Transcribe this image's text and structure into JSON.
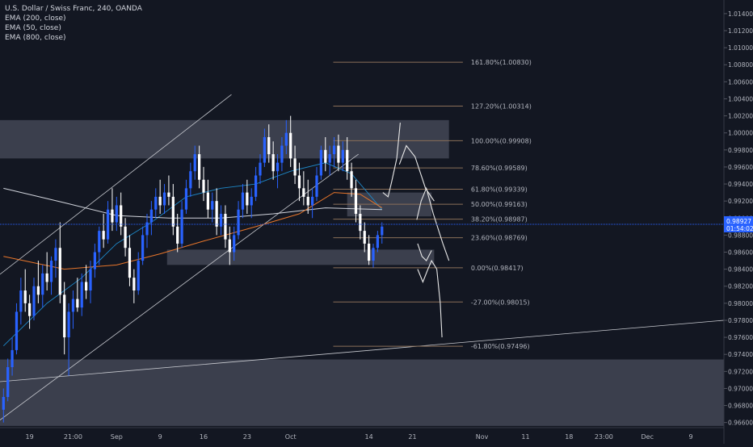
{
  "colors": {
    "background": "#131722",
    "candle_up": "#2962ff",
    "candle_down": "#ffffff",
    "ema200": "#d1d4dc",
    "ema50": "#e8762b",
    "ema800": "#1e88c8",
    "zone": "#4a4e5c",
    "fib_line": "#8a6f58",
    "fib_text": "#b2b5be",
    "price_line": "#2962ff",
    "axis_text": "#b2b5be",
    "price_badge": "#2962ff"
  },
  "chart_data": {
    "type": "candlestick",
    "symbol_line": "U.S. Dollar / Swiss Franc, 240, OANDA",
    "indicators": [
      "EMA (200, close)",
      "EMA (50, close)",
      "EMA (800, close)"
    ],
    "y_ticks": [
      "1.01400",
      "1.01200",
      "1.01000",
      "1.00800",
      "1.00600",
      "1.00400",
      "1.00200",
      "1.00000",
      "0.99800",
      "0.99600",
      "0.99400",
      "0.99200",
      "0.99000",
      "0.98800",
      "0.98600",
      "0.98400",
      "0.98200",
      "0.98000",
      "0.97800",
      "0.97600",
      "0.97400",
      "0.97200",
      "0.97000",
      "0.96800",
      "0.96600"
    ],
    "y_tick_values": [
      1.014,
      1.012,
      1.01,
      1.008,
      1.006,
      1.004,
      1.002,
      1.0,
      0.998,
      0.996,
      0.994,
      0.992,
      0.99,
      0.988,
      0.986,
      0.984,
      0.982,
      0.98,
      0.978,
      0.976,
      0.974,
      0.972,
      0.97,
      0.968,
      0.966
    ],
    "ylim": [
      0.9654,
      1.0156
    ],
    "x_ticks": [
      {
        "label": "19",
        "x": 0
      },
      {
        "label": "21:00",
        "x": 5
      },
      {
        "label": "Sep",
        "x": 10
      },
      {
        "label": "9",
        "x": 15
      },
      {
        "label": "16",
        "x": 20
      },
      {
        "label": "23",
        "x": 25
      },
      {
        "label": "Oct",
        "x": 30
      },
      {
        "label": "14",
        "x": 39
      },
      {
        "label": "21",
        "x": 44
      },
      {
        "label": "Nov",
        "x": 52
      },
      {
        "label": "11",
        "x": 57
      },
      {
        "label": "18",
        "x": 62
      },
      {
        "label": "23:00",
        "x": 66
      },
      {
        "label": "Dec",
        "x": 71
      },
      {
        "label": "9",
        "x": 76
      }
    ],
    "xlim": [
      -3.4,
      79.8
    ],
    "current_price": {
      "label": "0.98927",
      "countdown": "01:54:02",
      "value": 0.98927
    },
    "candles": [
      [
        -3,
        0.9675,
        0.97,
        0.966,
        0.969
      ],
      [
        -2.5,
        0.969,
        0.9735,
        0.9685,
        0.9725
      ],
      [
        -2,
        0.9725,
        0.976,
        0.9715,
        0.9745
      ],
      [
        -1.5,
        0.9745,
        0.98,
        0.974,
        0.979
      ],
      [
        -1,
        0.979,
        0.983,
        0.9775,
        0.9815
      ],
      [
        -0.5,
        0.9815,
        0.984,
        0.979,
        0.98
      ],
      [
        0,
        0.98,
        0.981,
        0.977,
        0.9785
      ],
      [
        0.5,
        0.9785,
        0.983,
        0.978,
        0.982
      ],
      [
        1,
        0.982,
        0.985,
        0.98,
        0.981
      ],
      [
        1.5,
        0.981,
        0.9845,
        0.9795,
        0.9835
      ],
      [
        2,
        0.9835,
        0.986,
        0.9815,
        0.9825
      ],
      [
        2.5,
        0.9825,
        0.9855,
        0.981,
        0.985
      ],
      [
        3,
        0.985,
        0.9875,
        0.983,
        0.9865
      ],
      [
        3.5,
        0.9865,
        0.9895,
        0.98,
        0.981
      ],
      [
        4,
        0.981,
        0.9825,
        0.974,
        0.976
      ],
      [
        4.5,
        0.976,
        0.98,
        0.9715,
        0.979
      ],
      [
        5,
        0.979,
        0.9815,
        0.977,
        0.9805
      ],
      [
        5.5,
        0.9805,
        0.983,
        0.979,
        0.9795
      ],
      [
        6,
        0.9795,
        0.9835,
        0.9785,
        0.9825
      ],
      [
        6.5,
        0.9825,
        0.9845,
        0.9805,
        0.9815
      ],
      [
        7,
        0.9815,
        0.985,
        0.98,
        0.984
      ],
      [
        7.5,
        0.984,
        0.987,
        0.983,
        0.986
      ],
      [
        8,
        0.986,
        0.989,
        0.9845,
        0.9885
      ],
      [
        8.5,
        0.9885,
        0.9905,
        0.9865,
        0.9875
      ],
      [
        9,
        0.9875,
        0.992,
        0.987,
        0.991
      ],
      [
        9.5,
        0.991,
        0.9935,
        0.9885,
        0.9895
      ],
      [
        10,
        0.9895,
        0.9925,
        0.9885,
        0.9915
      ],
      [
        10.5,
        0.9915,
        0.993,
        0.988,
        0.989
      ],
      [
        11,
        0.989,
        0.99,
        0.9855,
        0.9865
      ],
      [
        11.5,
        0.9865,
        0.988,
        0.982,
        0.983
      ],
      [
        12,
        0.983,
        0.984,
        0.98,
        0.9815
      ],
      [
        12.5,
        0.9815,
        0.986,
        0.981,
        0.985
      ],
      [
        13,
        0.985,
        0.989,
        0.9845,
        0.988
      ],
      [
        13.5,
        0.988,
        0.9905,
        0.9865,
        0.9895
      ],
      [
        14,
        0.9895,
        0.992,
        0.988,
        0.991
      ],
      [
        14.5,
        0.991,
        0.9935,
        0.99,
        0.9925
      ],
      [
        15,
        0.9925,
        0.9945,
        0.9905,
        0.9915
      ],
      [
        15.5,
        0.9915,
        0.994,
        0.9905,
        0.993
      ],
      [
        16,
        0.993,
        0.995,
        0.9915,
        0.9925
      ],
      [
        16.5,
        0.9925,
        0.994,
        0.988,
        0.989
      ],
      [
        17,
        0.989,
        0.9905,
        0.986,
        0.987
      ],
      [
        17.5,
        0.987,
        0.992,
        0.9865,
        0.991
      ],
      [
        18,
        0.991,
        0.9945,
        0.9905,
        0.9935
      ],
      [
        18.5,
        0.9935,
        0.9965,
        0.9925,
        0.9955
      ],
      [
        19,
        0.9955,
        0.9985,
        0.9945,
        0.9975
      ],
      [
        19.5,
        0.9975,
        0.9985,
        0.9935,
        0.9945
      ],
      [
        20,
        0.9945,
        0.996,
        0.992,
        0.993
      ],
      [
        20.5,
        0.993,
        0.9945,
        0.99,
        0.991
      ],
      [
        21,
        0.991,
        0.993,
        0.9895,
        0.992
      ],
      [
        21.5,
        0.992,
        0.9935,
        0.988,
        0.989
      ],
      [
        22,
        0.989,
        0.9915,
        0.988,
        0.9905
      ],
      [
        22.5,
        0.9905,
        0.9915,
        0.9865,
        0.9875
      ],
      [
        23,
        0.9875,
        0.989,
        0.9845,
        0.986
      ],
      [
        23.5,
        0.986,
        0.989,
        0.985,
        0.988
      ],
      [
        24,
        0.988,
        0.992,
        0.9875,
        0.991
      ],
      [
        24.5,
        0.991,
        0.994,
        0.99,
        0.993
      ],
      [
        25,
        0.993,
        0.9945,
        0.9905,
        0.9915
      ],
      [
        25.5,
        0.9915,
        0.9935,
        0.99,
        0.9925
      ],
      [
        26,
        0.9925,
        0.996,
        0.992,
        0.995
      ],
      [
        26.5,
        0.995,
        0.9975,
        0.994,
        0.9965
      ],
      [
        27,
        0.9965,
        1.0005,
        0.996,
        0.9995
      ],
      [
        27.5,
        0.9995,
        1.001,
        0.9965,
        0.9975
      ],
      [
        28,
        0.9975,
        0.999,
        0.9945,
        0.9955
      ],
      [
        28.5,
        0.9955,
        0.9975,
        0.9935,
        0.9965
      ],
      [
        29,
        0.9965,
        0.9995,
        0.9955,
        0.9985
      ],
      [
        29.5,
        0.9985,
        1.0015,
        0.9975,
        1.0
      ],
      [
        30,
        1.0,
        1.002,
        0.996,
        0.997
      ],
      [
        30.5,
        0.997,
        0.9985,
        0.994,
        0.995
      ],
      [
        31,
        0.995,
        0.9965,
        0.992,
        0.9935
      ],
      [
        31.5,
        0.9935,
        0.9955,
        0.9915,
        0.9925
      ],
      [
        32,
        0.9925,
        0.9945,
        0.9905,
        0.9915
      ],
      [
        32.5,
        0.9915,
        0.9935,
        0.99,
        0.9925
      ],
      [
        33,
        0.9925,
        0.996,
        0.992,
        0.995
      ],
      [
        33.5,
        0.995,
        0.9985,
        0.9945,
        0.998
      ],
      [
        34,
        0.998,
        0.9995,
        0.9955,
        0.9965
      ],
      [
        34.5,
        0.9965,
        0.9985,
        0.995,
        0.9975
      ],
      [
        35,
        0.9975,
        0.9995,
        0.996,
        0.9985
      ],
      [
        35.5,
        0.9985,
        0.9998,
        0.9955,
        0.9965
      ],
      [
        36,
        0.9965,
        0.999,
        0.9955,
        0.998
      ],
      [
        36.5,
        0.998,
        0.9995,
        0.9945,
        0.9955
      ],
      [
        37,
        0.9955,
        0.9965,
        0.9925,
        0.9935
      ],
      [
        37.5,
        0.9935,
        0.9945,
        0.9895,
        0.9905
      ],
      [
        38,
        0.9905,
        0.9915,
        0.9875,
        0.9885
      ],
      [
        38.5,
        0.9885,
        0.9895,
        0.986,
        0.987
      ],
      [
        39,
        0.987,
        0.988,
        0.9845,
        0.985
      ],
      [
        39.5,
        0.985,
        0.987,
        0.9842,
        0.9865
      ],
      [
        40,
        0.9865,
        0.9885,
        0.986,
        0.988
      ],
      [
        40.5,
        0.988,
        0.9895,
        0.987,
        0.989
      ]
    ],
    "ema200": [
      [
        -3,
        0.9935
      ],
      [
        4,
        0.9918
      ],
      [
        10,
        0.9903
      ],
      [
        16,
        0.99
      ],
      [
        22,
        0.99
      ],
      [
        28,
        0.9905
      ],
      [
        34,
        0.9912
      ],
      [
        40.5,
        0.991
      ]
    ],
    "ema50": [
      [
        -3,
        0.9855
      ],
      [
        4,
        0.984
      ],
      [
        10,
        0.9845
      ],
      [
        15,
        0.9858
      ],
      [
        20,
        0.9873
      ],
      [
        26,
        0.989
      ],
      [
        31,
        0.9905
      ],
      [
        35,
        0.993
      ],
      [
        38,
        0.9928
      ],
      [
        40.5,
        0.9912
      ]
    ],
    "ema800": [
      [
        -3,
        0.975
      ],
      [
        2,
        0.98
      ],
      [
        6,
        0.983
      ],
      [
        10,
        0.987
      ],
      [
        14,
        0.9895
      ],
      [
        18,
        0.9925
      ],
      [
        22,
        0.9935
      ],
      [
        26,
        0.994
      ],
      [
        30,
        0.9955
      ],
      [
        34,
        0.9965
      ],
      [
        37,
        0.9952
      ],
      [
        40.5,
        0.991
      ]
    ],
    "zones": [
      {
        "x0": -3.4,
        "x1": 48.2,
        "y_top": 1.0015,
        "y_bot": 0.997
      },
      {
        "x0": 15.8,
        "x1": 46.5,
        "y_top": 0.9863,
        "y_bot": 0.9845
      },
      {
        "x0": 36.5,
        "x1": 46.2,
        "y_top": 0.993,
        "y_bot": 0.9902
      },
      {
        "x0": -3.4,
        "x1": 79.8,
        "y_top": 0.9734,
        "y_bot": 0.9656
      }
    ],
    "trendlines": [
      {
        "name": "channel-upper",
        "x0": -3.4,
        "y0": 0.9834,
        "x1": 23.2,
        "y1": 1.0045
      },
      {
        "name": "channel-lower",
        "x0": -3.4,
        "y0": 0.9663,
        "x1": 37.8,
        "y1": 0.9975
      },
      {
        "name": "long-support",
        "x0": -3.4,
        "y0": 0.9708,
        "x1": 79.8,
        "y1": 0.978
      }
    ],
    "fib_x0": 34.9,
    "fib_x1": 49.8,
    "fib_levels": [
      {
        "label": "161.80%(1.00830)",
        "value": 1.0083
      },
      {
        "label": "127.20%(1.00314)",
        "value": 1.00314
      },
      {
        "label": "100.00%(0.99908)",
        "value": 0.99908
      },
      {
        "label": "78.60%(0.99589)",
        "value": 0.99589
      },
      {
        "label": "61.80%(0.99339)",
        "value": 0.99339
      },
      {
        "label": "50.00%(0.99163)",
        "value": 0.99163
      },
      {
        "label": "38.20%(0.98987)",
        "value": 0.98987
      },
      {
        "label": "23.60%(0.98769)",
        "value": 0.98769
      },
      {
        "label": "0.00%(0.98417)",
        "value": 0.98417
      },
      {
        "label": "-27.00%(0.98015)",
        "value": 0.98015
      },
      {
        "label": "-61.80%(0.97496)",
        "value": 0.97496
      }
    ],
    "projections": [
      [
        [
          40.6,
          0.993
        ],
        [
          41.2,
          0.9925
        ],
        [
          41.6,
          0.9942
        ],
        [
          42.2,
          0.997
        ],
        [
          42.6,
          1.0012
        ]
      ],
      [
        [
          42.5,
          0.9963
        ],
        [
          43.3,
          0.9985
        ],
        [
          44.3,
          0.9972
        ],
        [
          45.5,
          0.9935
        ],
        [
          46.5,
          0.992
        ]
      ],
      [
        [
          44.5,
          0.9898
        ],
        [
          45.0,
          0.992
        ],
        [
          45.6,
          0.9935
        ],
        [
          46.4,
          0.9905
        ],
        [
          47.5,
          0.987
        ],
        [
          48.2,
          0.985
        ]
      ],
      [
        [
          44.6,
          0.987
        ],
        [
          45.1,
          0.9855
        ],
        [
          45.6,
          0.985
        ],
        [
          46.2,
          0.9862
        ]
      ],
      [
        [
          44.6,
          0.984
        ],
        [
          45.2,
          0.9825
        ],
        [
          45.7,
          0.9838
        ],
        [
          46.2,
          0.985
        ],
        [
          46.8,
          0.984
        ],
        [
          47.2,
          0.98
        ],
        [
          47.4,
          0.976
        ]
      ]
    ]
  }
}
